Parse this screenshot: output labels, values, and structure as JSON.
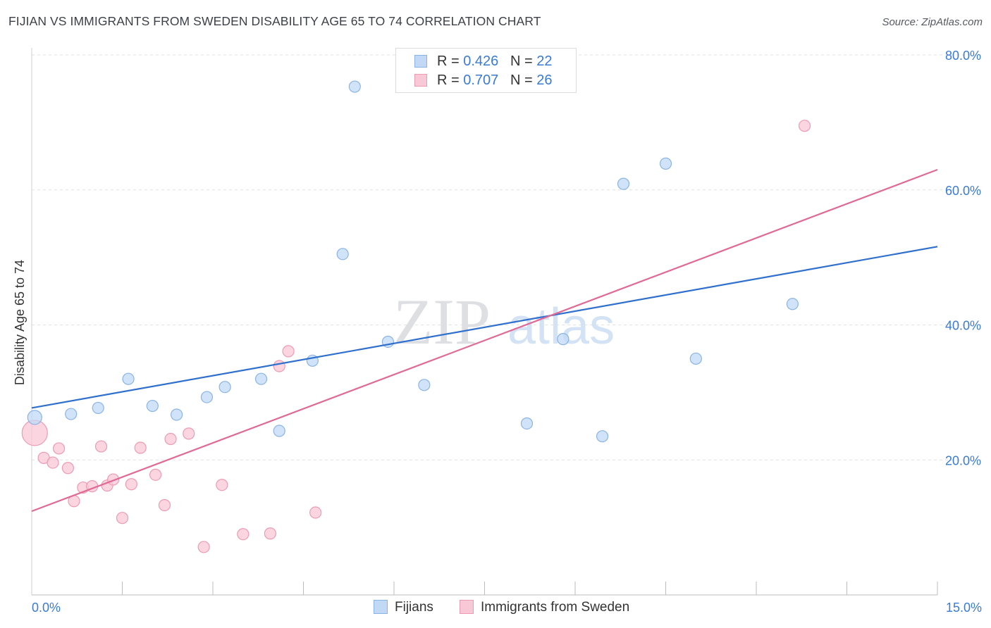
{
  "title": "FIJIAN VS IMMIGRANTS FROM SWEDEN DISABILITY AGE 65 TO 74 CORRELATION CHART",
  "source": "Source: ZipAtlas.com",
  "watermark": {
    "zip": "ZIP",
    "atlas": "atlas"
  },
  "legend_top": {
    "rows": [
      {
        "r_label": "R = ",
        "r_value": "0.426",
        "n_label": "N = ",
        "n_value": "22"
      },
      {
        "r_label": "R = ",
        "r_value": "0.707",
        "n_label": "N = ",
        "n_value": "26"
      }
    ]
  },
  "colors": {
    "fijians_fill": "#c2d9f5",
    "fijians_stroke": "#8ab4e6",
    "fijians_line": "#2f6fcd",
    "sweden_fill": "#f9c8d6",
    "sweden_stroke": "#ef9ab3",
    "sweden_line": "#e06a95",
    "axis_label": "#3a7bd5",
    "grid": "#e2e2e2"
  },
  "chart_data": {
    "type": "scatter",
    "title": "FIJIAN VS IMMIGRANTS FROM SWEDEN DISABILITY AGE 65 TO 74 CORRELATION CHART",
    "xlabel": "",
    "ylabel": "Disability Age 65 to 74",
    "xlim": [
      0,
      15
    ],
    "ylim": [
      0,
      80
    ],
    "x_tick_labels": [
      "0.0%",
      "15.0%"
    ],
    "y_tick_values": [
      20,
      40,
      60,
      80
    ],
    "y_tick_labels": [
      "20.0%",
      "40.0%",
      "60.0%",
      "80.0%"
    ],
    "grid": true,
    "series": [
      {
        "name": "Fijians",
        "r": 0.426,
        "n": 22,
        "points": [
          {
            "x": 0.05,
            "y": 26.3,
            "big": true
          },
          {
            "x": 0.65,
            "y": 26.8
          },
          {
            "x": 1.1,
            "y": 27.7
          },
          {
            "x": 1.6,
            "y": 32.0
          },
          {
            "x": 2.0,
            "y": 28.0
          },
          {
            "x": 2.4,
            "y": 26.7
          },
          {
            "x": 2.9,
            "y": 29.3
          },
          {
            "x": 3.2,
            "y": 30.8
          },
          {
            "x": 3.8,
            "y": 32.0
          },
          {
            "x": 4.1,
            "y": 24.3
          },
          {
            "x": 4.65,
            "y": 34.7
          },
          {
            "x": 5.15,
            "y": 50.5
          },
          {
            "x": 5.35,
            "y": 75.3
          },
          {
            "x": 5.9,
            "y": 37.5
          },
          {
            "x": 6.5,
            "y": 31.1
          },
          {
            "x": 8.2,
            "y": 25.4
          },
          {
            "x": 8.8,
            "y": 37.9
          },
          {
            "x": 9.45,
            "y": 23.5
          },
          {
            "x": 9.8,
            "y": 60.9
          },
          {
            "x": 10.5,
            "y": 63.9
          },
          {
            "x": 11.0,
            "y": 35.0
          },
          {
            "x": 12.6,
            "y": 43.1
          }
        ],
        "trend": {
          "x": [
            0,
            15
          ],
          "y": [
            27.7,
            51.6
          ]
        }
      },
      {
        "name": "Immigrants from Sweden",
        "r": 0.707,
        "n": 26,
        "points": [
          {
            "x": 0.05,
            "y": 24.0,
            "big": true
          },
          {
            "x": 0.2,
            "y": 20.3
          },
          {
            "x": 0.35,
            "y": 19.6
          },
          {
            "x": 0.45,
            "y": 21.7
          },
          {
            "x": 0.6,
            "y": 18.8
          },
          {
            "x": 0.7,
            "y": 13.9
          },
          {
            "x": 0.85,
            "y": 15.9
          },
          {
            "x": 1.0,
            "y": 16.1
          },
          {
            "x": 1.15,
            "y": 22.0
          },
          {
            "x": 1.25,
            "y": 16.2
          },
          {
            "x": 1.35,
            "y": 17.1
          },
          {
            "x": 1.5,
            "y": 11.4
          },
          {
            "x": 1.65,
            "y": 16.4
          },
          {
            "x": 1.8,
            "y": 21.8
          },
          {
            "x": 2.05,
            "y": 17.8
          },
          {
            "x": 2.2,
            "y": 13.3
          },
          {
            "x": 2.3,
            "y": 23.1
          },
          {
            "x": 2.6,
            "y": 23.9
          },
          {
            "x": 2.85,
            "y": 7.1
          },
          {
            "x": 3.15,
            "y": 16.3
          },
          {
            "x": 3.5,
            "y": 9.0
          },
          {
            "x": 3.95,
            "y": 9.1
          },
          {
            "x": 4.1,
            "y": 33.9
          },
          {
            "x": 4.25,
            "y": 36.1
          },
          {
            "x": 4.7,
            "y": 12.2
          },
          {
            "x": 12.8,
            "y": 69.5
          }
        ],
        "trend": {
          "x": [
            0,
            15
          ],
          "y": [
            12.4,
            63.0
          ]
        }
      }
    ]
  },
  "legend_bottom": [
    {
      "label": "Fijians"
    },
    {
      "label": "Immigrants from Sweden"
    }
  ]
}
